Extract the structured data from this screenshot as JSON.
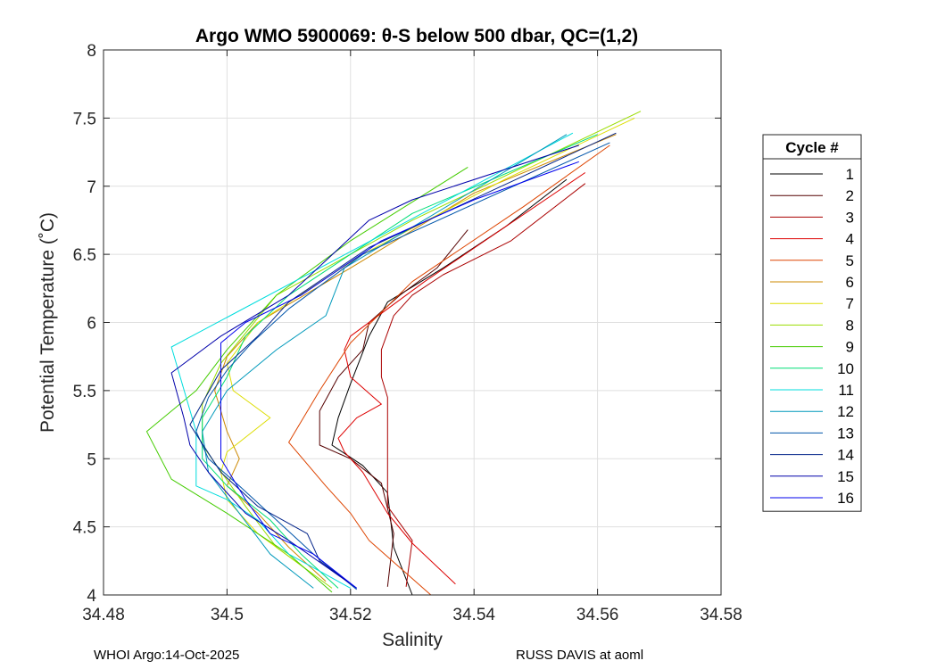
{
  "chart_data": {
    "type": "line",
    "title": "Argo WMO 5900069: θ-S below 500 dbar,  QC=(1,2)",
    "xlabel": "Salinity",
    "ylabel": "Potential Temperature (˚C)",
    "xlim": [
      34.48,
      34.58
    ],
    "ylim": [
      4,
      8
    ],
    "xticks": [
      "34.48",
      "34.5",
      "34.52",
      "34.54",
      "34.56",
      "34.58"
    ],
    "yticks": [
      "4",
      "4.5",
      "5",
      "5.5",
      "6",
      "6.5",
      "7",
      "7.5",
      "8"
    ],
    "grid": true,
    "legend": {
      "title": "Cycle #",
      "position": "right"
    },
    "series": [
      {
        "name": "1",
        "color": "#000000",
        "points": [
          [
            34.53,
            4.0
          ],
          [
            34.527,
            4.35
          ],
          [
            34.526,
            4.75
          ],
          [
            34.522,
            4.95
          ],
          [
            34.517,
            5.1
          ],
          [
            34.518,
            5.3
          ],
          [
            34.52,
            5.55
          ],
          [
            34.523,
            5.9
          ],
          [
            34.526,
            6.15
          ],
          [
            34.535,
            6.4
          ],
          [
            34.545,
            6.7
          ],
          [
            34.555,
            7.05
          ]
        ]
      },
      {
        "name": "2",
        "color": "#550000",
        "points": [
          [
            34.526,
            4.06
          ],
          [
            34.527,
            4.45
          ],
          [
            34.525,
            4.82
          ],
          [
            34.52,
            5.0
          ],
          [
            34.515,
            5.1
          ],
          [
            34.515,
            5.35
          ],
          [
            34.518,
            5.6
          ],
          [
            34.522,
            5.8
          ],
          [
            34.523,
            6.0
          ],
          [
            34.528,
            6.2
          ],
          [
            34.534,
            6.4
          ],
          [
            34.539,
            6.68
          ]
        ]
      },
      {
        "name": "3",
        "color": "#aa0000",
        "points": [
          [
            34.529,
            4.06
          ],
          [
            34.53,
            4.4
          ],
          [
            34.526,
            4.65
          ],
          [
            34.526,
            5.0
          ],
          [
            34.526,
            5.25
          ],
          [
            34.526,
            5.45
          ],
          [
            34.525,
            5.6
          ],
          [
            34.525,
            5.8
          ],
          [
            34.527,
            6.05
          ],
          [
            34.53,
            6.2
          ],
          [
            34.535,
            6.35
          ],
          [
            34.546,
            6.6
          ],
          [
            34.558,
            7.02
          ]
        ]
      },
      {
        "name": "4",
        "color": "#dd0000",
        "points": [
          [
            34.537,
            4.08
          ],
          [
            34.53,
            4.38
          ],
          [
            34.526,
            4.6
          ],
          [
            34.522,
            4.9
          ],
          [
            34.519,
            5.05
          ],
          [
            34.518,
            5.15
          ],
          [
            34.521,
            5.3
          ],
          [
            34.525,
            5.4
          ],
          [
            34.52,
            5.6
          ],
          [
            34.519,
            5.8
          ],
          [
            34.52,
            5.9
          ],
          [
            34.532,
            6.3
          ],
          [
            34.545,
            6.7
          ],
          [
            34.558,
            7.1
          ]
        ]
      },
      {
        "name": "5",
        "color": "#dd4400",
        "points": [
          [
            34.533,
            4.0
          ],
          [
            34.523,
            4.4
          ],
          [
            34.52,
            4.6
          ],
          [
            34.516,
            4.8
          ],
          [
            34.51,
            5.12
          ],
          [
            34.515,
            5.5
          ],
          [
            34.52,
            5.85
          ],
          [
            34.53,
            6.3
          ],
          [
            34.548,
            6.85
          ],
          [
            34.562,
            7.3
          ]
        ]
      },
      {
        "name": "6",
        "color": "#cc8800",
        "points": [
          [
            34.516,
            4.1
          ],
          [
            34.51,
            4.35
          ],
          [
            34.505,
            4.6
          ],
          [
            34.5,
            4.8
          ],
          [
            34.502,
            5.0
          ],
          [
            34.5,
            5.2
          ],
          [
            34.498,
            5.5
          ],
          [
            34.5,
            5.75
          ],
          [
            34.505,
            6.0
          ],
          [
            34.52,
            6.4
          ],
          [
            34.54,
            6.95
          ],
          [
            34.563,
            7.38
          ]
        ]
      },
      {
        "name": "7",
        "color": "#dddd00",
        "points": [
          [
            34.514,
            4.15
          ],
          [
            34.505,
            4.45
          ],
          [
            34.5,
            4.7
          ],
          [
            34.499,
            4.9
          ],
          [
            34.5,
            5.05
          ],
          [
            34.507,
            5.3
          ],
          [
            34.501,
            5.5
          ],
          [
            34.5,
            5.7
          ],
          [
            34.505,
            6.0
          ],
          [
            34.522,
            6.5
          ],
          [
            34.545,
            7.05
          ],
          [
            34.566,
            7.5
          ]
        ]
      },
      {
        "name": "8",
        "color": "#99dd00",
        "points": [
          [
            34.517,
            4.05
          ],
          [
            34.508,
            4.35
          ],
          [
            34.503,
            4.65
          ],
          [
            34.496,
            5.1
          ],
          [
            34.496,
            5.4
          ],
          [
            34.499,
            5.7
          ],
          [
            34.508,
            6.2
          ],
          [
            34.53,
            6.75
          ],
          [
            34.567,
            7.55
          ]
        ]
      },
      {
        "name": "9",
        "color": "#44cc00",
        "points": [
          [
            34.517,
            4.02
          ],
          [
            34.51,
            4.3
          ],
          [
            34.5,
            4.6
          ],
          [
            34.491,
            4.85
          ],
          [
            34.487,
            5.2
          ],
          [
            34.495,
            5.5
          ],
          [
            34.5,
            5.8
          ],
          [
            34.508,
            6.2
          ],
          [
            34.52,
            6.6
          ],
          [
            34.539,
            7.14
          ]
        ]
      },
      {
        "name": "10",
        "color": "#00dd77",
        "points": [
          [
            34.518,
            4.05
          ],
          [
            34.512,
            4.3
          ],
          [
            34.507,
            4.55
          ],
          [
            34.5,
            4.8
          ],
          [
            34.496,
            5.0
          ],
          [
            34.496,
            5.3
          ],
          [
            34.5,
            5.6
          ],
          [
            34.503,
            5.9
          ],
          [
            34.51,
            6.2
          ],
          [
            34.53,
            6.8
          ],
          [
            34.56,
            7.38
          ]
        ]
      },
      {
        "name": "11",
        "color": "#00dddd",
        "points": [
          [
            34.52,
            4.05
          ],
          [
            34.51,
            4.3
          ],
          [
            34.505,
            4.55
          ],
          [
            34.5,
            4.7
          ],
          [
            34.495,
            4.8
          ],
          [
            34.495,
            5.2
          ],
          [
            34.491,
            5.82
          ],
          [
            34.556,
            7.39
          ]
        ]
      },
      {
        "name": "12",
        "color": "#0099bb",
        "points": [
          [
            34.514,
            4.05
          ],
          [
            34.507,
            4.3
          ],
          [
            34.502,
            4.6
          ],
          [
            34.497,
            4.9
          ],
          [
            34.496,
            5.2
          ],
          [
            34.5,
            5.5
          ],
          [
            34.508,
            5.8
          ],
          [
            34.516,
            6.05
          ],
          [
            34.519,
            6.4
          ],
          [
            34.555,
            7.38
          ]
        ]
      },
      {
        "name": "13",
        "color": "#0055aa",
        "points": [
          [
            34.521,
            4.04
          ],
          [
            34.514,
            4.3
          ],
          [
            34.508,
            4.55
          ],
          [
            34.502,
            4.8
          ],
          [
            34.497,
            5.0
          ],
          [
            34.495,
            5.2
          ],
          [
            34.497,
            5.45
          ],
          [
            34.5,
            5.65
          ],
          [
            34.504,
            5.85
          ],
          [
            34.51,
            6.1
          ],
          [
            34.522,
            6.5
          ],
          [
            34.562,
            7.32
          ]
        ]
      },
      {
        "name": "14",
        "color": "#002288",
        "points": [
          [
            34.521,
            4.05
          ],
          [
            34.515,
            4.25
          ],
          [
            34.513,
            4.45
          ],
          [
            34.505,
            4.65
          ],
          [
            34.499,
            4.9
          ],
          [
            34.494,
            5.25
          ],
          [
            34.499,
            5.65
          ],
          [
            34.505,
            5.9
          ],
          [
            34.51,
            6.15
          ],
          [
            34.523,
            6.55
          ],
          [
            34.563,
            7.39
          ]
        ]
      },
      {
        "name": "15",
        "color": "#0000aa",
        "points": [
          [
            34.521,
            4.05
          ],
          [
            34.51,
            4.4
          ],
          [
            34.503,
            4.6
          ],
          [
            34.497,
            4.9
          ],
          [
            34.494,
            5.1
          ],
          [
            34.493,
            5.3
          ],
          [
            34.491,
            5.63
          ],
          [
            34.499,
            5.9
          ],
          [
            34.51,
            6.2
          ],
          [
            34.523,
            6.75
          ],
          [
            34.53,
            6.9
          ],
          [
            34.557,
            7.3
          ]
        ]
      },
      {
        "name": "16",
        "color": "#0000ee",
        "points": [
          [
            34.521,
            4.05
          ],
          [
            34.514,
            4.3
          ],
          [
            34.507,
            4.45
          ],
          [
            34.503,
            4.7
          ],
          [
            34.499,
            5.0
          ],
          [
            34.499,
            5.3
          ],
          [
            34.499,
            5.6
          ],
          [
            34.499,
            5.85
          ],
          [
            34.503,
            6.0
          ],
          [
            34.512,
            6.2
          ],
          [
            34.525,
            6.6
          ],
          [
            34.54,
            6.9
          ],
          [
            34.557,
            7.18
          ]
        ]
      }
    ]
  },
  "footer": {
    "left": "WHOI Argo:14-Oct-2025",
    "right": "RUSS DAVIS at aoml"
  }
}
